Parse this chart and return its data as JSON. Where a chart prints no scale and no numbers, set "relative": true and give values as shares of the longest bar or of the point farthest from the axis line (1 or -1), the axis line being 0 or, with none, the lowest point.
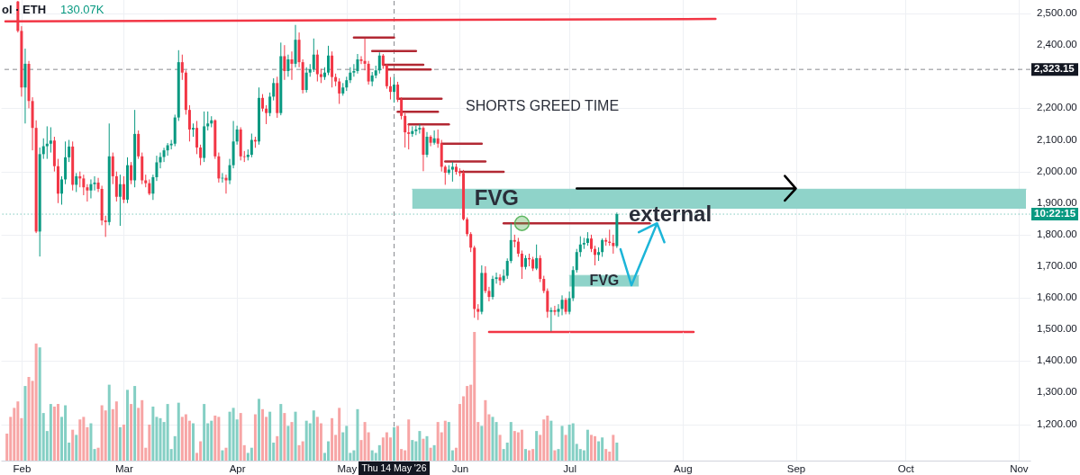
{
  "chart_data": [
    {
      "type": "candlestick",
      "x": [
        "2026-01-31",
        "2026-02-01",
        "2026-02-02",
        "2026-02-03",
        "2026-02-04",
        "2026-02-05",
        "2026-02-06",
        "2026-02-07",
        "2026-02-08",
        "2026-02-09",
        "2026-02-10",
        "2026-02-11",
        "2026-02-12",
        "2026-02-13",
        "2026-02-14",
        "2026-02-15",
        "2026-02-16",
        "2026-02-17",
        "2026-02-18",
        "2026-02-19",
        "2026-02-20",
        "2026-02-21",
        "2026-02-22",
        "2026-02-23",
        "2026-02-24",
        "2026-02-25",
        "2026-02-26",
        "2026-02-27",
        "2026-02-28",
        "2026-03-01",
        "2026-03-02",
        "2026-03-03",
        "2026-03-04",
        "2026-03-05",
        "2026-03-06",
        "2026-03-07",
        "2026-03-08",
        "2026-03-09",
        "2026-03-10",
        "2026-03-11",
        "2026-03-12",
        "2026-03-13",
        "2026-03-14",
        "2026-03-15",
        "2026-03-16",
        "2026-03-17",
        "2026-03-18",
        "2026-03-19",
        "2026-03-20",
        "2026-03-21",
        "2026-03-22",
        "2026-03-23",
        "2026-03-24",
        "2026-03-25",
        "2026-03-26",
        "2026-03-27",
        "2026-03-28",
        "2026-03-29",
        "2026-03-30",
        "2026-03-31",
        "2026-04-01",
        "2026-04-02",
        "2026-04-03",
        "2026-04-04",
        "2026-04-05",
        "2026-04-06",
        "2026-04-07",
        "2026-04-08",
        "2026-04-09",
        "2026-04-10",
        "2026-04-11",
        "2026-04-12",
        "2026-04-13",
        "2026-04-14",
        "2026-04-15",
        "2026-04-16",
        "2026-04-17",
        "2026-04-18",
        "2026-04-19",
        "2026-04-20",
        "2026-04-21",
        "2026-04-22",
        "2026-04-23",
        "2026-04-24",
        "2026-04-25",
        "2026-04-26",
        "2026-04-27",
        "2026-04-28",
        "2026-04-29",
        "2026-04-30",
        "2026-05-01",
        "2026-05-02",
        "2026-05-03",
        "2026-05-04",
        "2026-05-05",
        "2026-05-06",
        "2026-05-07",
        "2026-05-08",
        "2026-05-09",
        "2026-05-10",
        "2026-05-11",
        "2026-05-12",
        "2026-05-13",
        "2026-05-14",
        "2026-05-15",
        "2026-05-16",
        "2026-05-17",
        "2026-05-18",
        "2026-05-19",
        "2026-05-20",
        "2026-05-21",
        "2026-05-22",
        "2026-05-23",
        "2026-05-24",
        "2026-05-25",
        "2026-05-26",
        "2026-05-27",
        "2026-05-28",
        "2026-05-29",
        "2026-05-30",
        "2026-05-31",
        "2026-06-01",
        "2026-06-02",
        "2026-06-03",
        "2026-06-04",
        "2026-06-05",
        "2026-06-06",
        "2026-06-07",
        "2026-06-08",
        "2026-06-09",
        "2026-06-10",
        "2026-06-11",
        "2026-06-12",
        "2026-06-13",
        "2026-06-14",
        "2026-06-15",
        "2026-06-16",
        "2026-06-17",
        "2026-06-18",
        "2026-06-19",
        "2026-06-20",
        "2026-06-21",
        "2026-06-22",
        "2026-06-23",
        "2026-06-24",
        "2026-06-25",
        "2026-06-26",
        "2026-06-27",
        "2026-06-28",
        "2026-06-29",
        "2026-06-30",
        "2026-07-01",
        "2026-07-02",
        "2026-07-03",
        "2026-07-04",
        "2026-07-05",
        "2026-07-06",
        "2026-07-07",
        "2026-07-08",
        "2026-07-09",
        "2026-07-10",
        "2026-07-11",
        "2026-07-12",
        "2026-07-13",
        "2026-07-14"
      ],
      "ohlc": [
        [
          2538,
          2540,
          2440,
          2445
        ],
        [
          2445,
          2460,
          2237,
          2266
        ],
        [
          2266,
          2389,
          2152,
          2341
        ],
        [
          2341,
          2350,
          2200,
          2223
        ],
        [
          2223,
          2235,
          2067,
          2138
        ],
        [
          2138,
          2162,
          1805,
          1810
        ],
        [
          1810,
          2076,
          1731,
          2055
        ],
        [
          2055,
          2105,
          2040,
          2080
        ],
        [
          2080,
          2143,
          2040,
          2088
        ],
        [
          2088,
          2140,
          2060,
          2098
        ],
        [
          2098,
          2110,
          2000,
          2017
        ],
        [
          2017,
          2040,
          1900,
          1930
        ],
        [
          1930,
          1985,
          1895,
          1975
        ],
        [
          1975,
          2095,
          1960,
          2045
        ],
        [
          2045,
          2100,
          2030,
          2079
        ],
        [
          2079,
          2095,
          1940,
          1958
        ],
        [
          1958,
          1995,
          1935,
          1985
        ],
        [
          1985,
          2000,
          1950,
          1978
        ],
        [
          1978,
          1990,
          1925,
          1950
        ],
        [
          1950,
          1960,
          1905,
          1940
        ],
        [
          1940,
          1975,
          1915,
          1960
        ],
        [
          1960,
          1985,
          1940,
          1965
        ],
        [
          1965,
          1980,
          1935,
          1945
        ],
        [
          1945,
          1955,
          1830,
          1845
        ],
        [
          1845,
          1860,
          1793,
          1840
        ],
        [
          1840,
          2152,
          1830,
          2048
        ],
        [
          2048,
          2060,
          1960,
          1985
        ],
        [
          1985,
          2000,
          1905,
          1920
        ],
        [
          1920,
          1990,
          1828,
          1960
        ],
        [
          1960,
          1985,
          1900,
          1911
        ],
        [
          1911,
          2045,
          1900,
          2020
        ],
        [
          2020,
          2030,
          1960,
          1972
        ],
        [
          1972,
          2195,
          1950,
          2119
        ],
        [
          2119,
          2130,
          2040,
          2048
        ],
        [
          2048,
          2060,
          1960,
          1972
        ],
        [
          1972,
          1990,
          1950,
          1963
        ],
        [
          1963,
          1975,
          1925,
          1930
        ],
        [
          1930,
          1990,
          1910,
          1982
        ],
        [
          1982,
          2050,
          1970,
          2029
        ],
        [
          2029,
          2060,
          2010,
          2046
        ],
        [
          2046,
          2075,
          2030,
          2067
        ],
        [
          2067,
          2090,
          2050,
          2083
        ],
        [
          2083,
          2100,
          2070,
          2088
        ],
        [
          2088,
          2180,
          2080,
          2171
        ],
        [
          2171,
          2384,
          2160,
          2346
        ],
        [
          2346,
          2370,
          2290,
          2313
        ],
        [
          2313,
          2320,
          2180,
          2195
        ],
        [
          2195,
          2210,
          2095,
          2133
        ],
        [
          2133,
          2152,
          2110,
          2138
        ],
        [
          2138,
          2160,
          2055,
          2076
        ],
        [
          2076,
          2085,
          2020,
          2043
        ],
        [
          2043,
          2190,
          2030,
          2143
        ],
        [
          2143,
          2190,
          2130,
          2152
        ],
        [
          2152,
          2175,
          2140,
          2162
        ],
        [
          2162,
          2165,
          2040,
          2048
        ],
        [
          2048,
          2060,
          1965,
          1978
        ],
        [
          1978,
          1995,
          1965,
          1980
        ],
        [
          1980,
          1990,
          1930,
          1972
        ],
        [
          1972,
          2040,
          1960,
          2020
        ],
        [
          2020,
          2160,
          2010,
          2095
        ],
        [
          2095,
          2145,
          2085,
          2133
        ],
        [
          2133,
          2140,
          2035,
          2048
        ],
        [
          2048,
          2065,
          2030,
          2046
        ],
        [
          2046,
          2070,
          2035,
          2053
        ],
        [
          2053,
          2120,
          2045,
          2100
        ],
        [
          2100,
          2110,
          2075,
          2095
        ],
        [
          2095,
          2266,
          2085,
          2233
        ],
        [
          2233,
          2245,
          2190,
          2199
        ],
        [
          2199,
          2210,
          2150,
          2185
        ],
        [
          2185,
          2250,
          2175,
          2237
        ],
        [
          2237,
          2295,
          2225,
          2280
        ],
        [
          2280,
          2300,
          2170,
          2185
        ],
        [
          2185,
          2408,
          2178,
          2365
        ],
        [
          2365,
          2400,
          2290,
          2318
        ],
        [
          2318,
          2370,
          2300,
          2355
        ],
        [
          2355,
          2380,
          2290,
          2341
        ],
        [
          2341,
          2464,
          2330,
          2417
        ],
        [
          2417,
          2440,
          2330,
          2346
        ],
        [
          2346,
          2355,
          2247,
          2258
        ],
        [
          2258,
          2330,
          2250,
          2313
        ],
        [
          2313,
          2340,
          2300,
          2324
        ],
        [
          2324,
          2421,
          2315,
          2370
        ],
        [
          2370,
          2385,
          2285,
          2308
        ],
        [
          2308,
          2325,
          2280,
          2299
        ],
        [
          2299,
          2330,
          2290,
          2313
        ],
        [
          2313,
          2398,
          2305,
          2367
        ],
        [
          2367,
          2380,
          2266,
          2299
        ],
        [
          2299,
          2310,
          2270,
          2285
        ],
        [
          2285,
          2295,
          2214,
          2247
        ],
        [
          2247,
          2280,
          2240,
          2266
        ],
        [
          2266,
          2300,
          2255,
          2289
        ],
        [
          2289,
          2330,
          2280,
          2313
        ],
        [
          2313,
          2340,
          2300,
          2318
        ],
        [
          2318,
          2372,
          2310,
          2355
        ],
        [
          2355,
          2365,
          2340,
          2350
        ],
        [
          2350,
          2421,
          2320,
          2341
        ],
        [
          2341,
          2350,
          2275,
          2285
        ],
        [
          2285,
          2315,
          2270,
          2304
        ],
        [
          2304,
          2335,
          2295,
          2320
        ],
        [
          2320,
          2377,
          2310,
          2367
        ],
        [
          2367,
          2372,
          2325,
          2337
        ],
        [
          2337,
          2340,
          2262,
          2270
        ],
        [
          2270,
          2299,
          2228,
          2252
        ],
        [
          2252,
          2299,
          2218,
          2275
        ],
        [
          2275,
          2284,
          2220,
          2228
        ],
        [
          2228,
          2235,
          2165,
          2176
        ],
        [
          2176,
          2185,
          2076,
          2124
        ],
        [
          2124,
          2150,
          2070,
          2119
        ],
        [
          2119,
          2143,
          2110,
          2128
        ],
        [
          2128,
          2145,
          2115,
          2133
        ],
        [
          2133,
          2150,
          2120,
          2138
        ],
        [
          2138,
          2143,
          2001,
          2053
        ],
        [
          2053,
          2125,
          2045,
          2110
        ],
        [
          2110,
          2115,
          2080,
          2091
        ],
        [
          2091,
          2130,
          2085,
          2105
        ],
        [
          2105,
          2133,
          2075,
          2088
        ],
        [
          2088,
          2100,
          2000,
          2015
        ],
        [
          2015,
          2020,
          1958,
          1996
        ],
        [
          1996,
          2020,
          1990,
          2006
        ],
        [
          2006,
          2030,
          1968,
          2015
        ],
        [
          2015,
          2025,
          1990,
          1999
        ],
        [
          1999,
          2010,
          1985,
          1995
        ],
        [
          1995,
          2005,
          1845,
          1849
        ],
        [
          1849,
          1855,
          1795,
          1802
        ],
        [
          1802,
          1808,
          1745,
          1759
        ],
        [
          1759,
          1765,
          1537,
          1565
        ],
        [
          1565,
          1580,
          1530,
          1556
        ],
        [
          1556,
          1703,
          1548,
          1679
        ],
        [
          1679,
          1700,
          1615,
          1622
        ],
        [
          1622,
          1635,
          1589,
          1603
        ],
        [
          1603,
          1670,
          1595,
          1660
        ],
        [
          1660,
          1680,
          1645,
          1665
        ],
        [
          1665,
          1675,
          1640,
          1655
        ],
        [
          1655,
          1690,
          1648,
          1670
        ],
        [
          1670,
          1725,
          1660,
          1717
        ],
        [
          1717,
          1836,
          1710,
          1783
        ],
        [
          1783,
          1800,
          1760,
          1778
        ],
        [
          1778,
          1790,
          1730,
          1740
        ],
        [
          1740,
          1750,
          1660,
          1698
        ],
        [
          1698,
          1735,
          1690,
          1726
        ],
        [
          1726,
          1740,
          1700,
          1722
        ],
        [
          1722,
          1730,
          1685,
          1693
        ],
        [
          1693,
          1769,
          1688,
          1726
        ],
        [
          1726,
          1735,
          1650,
          1660
        ],
        [
          1660,
          1670,
          1615,
          1622
        ],
        [
          1622,
          1630,
          1537,
          1556
        ],
        [
          1556,
          1570,
          1494,
          1561
        ],
        [
          1561,
          1575,
          1545,
          1556
        ],
        [
          1556,
          1580,
          1540,
          1565
        ],
        [
          1565,
          1608,
          1545,
          1594
        ],
        [
          1594,
          1600,
          1548,
          1556
        ],
        [
          1556,
          1620,
          1548,
          1599
        ],
        [
          1599,
          1700,
          1590,
          1688
        ],
        [
          1688,
          1755,
          1680,
          1745
        ],
        [
          1745,
          1795,
          1730,
          1769
        ],
        [
          1769,
          1790,
          1755,
          1774
        ],
        [
          1774,
          1808,
          1765,
          1788
        ],
        [
          1788,
          1800,
          1745,
          1755
        ],
        [
          1755,
          1765,
          1703,
          1736
        ],
        [
          1736,
          1760,
          1717,
          1745
        ],
        [
          1745,
          1788,
          1730,
          1783
        ],
        [
          1783,
          1790,
          1765,
          1778
        ],
        [
          1778,
          1816,
          1765,
          1774
        ],
        [
          1774,
          1800,
          1740,
          1764
        ],
        [
          1764,
          1870,
          1758,
          1865
        ]
      ],
      "colors": [
        "#f23645",
        "#f23645",
        "#089981",
        "#f23645",
        "#f23645",
        "#f23645",
        "#089981",
        "#089981",
        "#089981",
        "#089981",
        "#f23645",
        "#f23645",
        "#089981",
        "#089981",
        "#089981",
        "#f23645",
        "#089981",
        "#f23645",
        "#f23645",
        "#f23645",
        "#089981",
        "#089981",
        "#f23645",
        "#f23645",
        "#f23645",
        "#089981",
        "#f23645",
        "#f23645",
        "#089981",
        "#f23645",
        "#089981",
        "#f23645",
        "#089981",
        "#f23645",
        "#f23645",
        "#f23645",
        "#f23645",
        "#089981",
        "#089981",
        "#089981",
        "#089981",
        "#089981",
        "#089981",
        "#089981",
        "#089981",
        "#f23645",
        "#f23645",
        "#f23645",
        "#089981",
        "#f23645",
        "#f23645",
        "#089981",
        "#089981",
        "#089981",
        "#f23645",
        "#f23645",
        "#089981",
        "#f23645",
        "#089981",
        "#089981",
        "#089981",
        "#f23645",
        "#f23645",
        "#089981",
        "#089981",
        "#f23645",
        "#089981",
        "#f23645",
        "#f23645",
        "#089981",
        "#089981",
        "#f23645",
        "#089981",
        "#f23645",
        "#089981",
        "#f23645",
        "#089981",
        "#f23645",
        "#f23645",
        "#089981",
        "#089981",
        "#089981",
        "#f23645",
        "#f23645",
        "#089981",
        "#089981",
        "#f23645",
        "#f23645",
        "#f23645",
        "#089981",
        "#089981",
        "#089981",
        "#089981",
        "#089981",
        "#f23645",
        "#f23645",
        "#f23645",
        "#089981",
        "#089981",
        "#089981",
        "#f23645",
        "#f23645",
        "#f23645",
        "#089981",
        "#f23645",
        "#f23645",
        "#f23645",
        "#f23645",
        "#089981",
        "#089981",
        "#089981",
        "#f23645",
        "#089981",
        "#f23645",
        "#089981",
        "#f23645",
        "#f23645",
        "#f23645",
        "#089981",
        "#089981",
        "#f23645",
        "#f23645",
        "#f23645",
        "#f23645",
        "#f23645",
        "#f23645",
        "#f23645",
        "#089981",
        "#f23645",
        "#f23645",
        "#089981",
        "#089981",
        "#f23645",
        "#089981",
        "#089981",
        "#089981",
        "#f23645",
        "#f23645",
        "#f23645",
        "#089981",
        "#f23645",
        "#f23645",
        "#089981",
        "#f23645",
        "#f23645",
        "#f23645",
        "#089981",
        "#f23645",
        "#089981",
        "#089981",
        "#f23645",
        "#089981",
        "#089981",
        "#089981",
        "#089981",
        "#089981",
        "#089981",
        "#f23645",
        "#f23645",
        "#089981",
        "#089981",
        "#f23645",
        "#f23645",
        "#f23645",
        "#089981"
      ],
      "series": [
        {
          "type": "line",
          "name": "FVG",
          "color": "#8fd3c9",
          "x": [
            "2026-05-19",
            "2026-11-03"
          ],
          "values": [
            1944,
            1944
          ],
          "lower": [
            1882,
            1882
          ],
          "upper": [
            1944,
            1944
          ]
        },
        {
          "type": "line",
          "name": "FVG",
          "color": "#8fd3c9",
          "x": [
            "2026-07-01",
            "2026-07-20"
          ],
          "values": [
            1671,
            1671
          ],
          "lower": [
            1636,
            1636
          ],
          "upper": [
            1671,
            1671
          ]
        },
        {
          "type": "line",
          "color": "#f23645",
          "x": [
            "2026-01-27T14:00",
            "2026-08-10"
          ],
          "values": [
            2475,
            2483
          ]
        },
        {
          "type": "line",
          "color": "#b22833",
          "x": [
            "2026-05-03",
            "2026-05-14"
          ],
          "values": [
            2424,
            2424
          ]
        },
        {
          "type": "line",
          "color": "#b22833",
          "x": [
            "2026-05-08",
            "2026-05-20"
          ],
          "values": [
            2381,
            2381
          ]
        },
        {
          "type": "line",
          "color": "#b22833",
          "x": [
            "2026-05-11",
            "2026-05-22"
          ],
          "values": [
            2338,
            2338
          ]
        },
        {
          "type": "line",
          "color": "#b22833",
          "x": [
            "2026-05-12",
            "2026-05-24"
          ],
          "values": [
            2323,
            2323
          ]
        },
        {
          "type": "line",
          "color": "#b22833",
          "x": [
            "2026-05-15",
            "2026-05-27"
          ],
          "values": [
            2230,
            2230
          ]
        },
        {
          "type": "line",
          "color": "#b22833",
          "x": [
            "2026-05-15",
            "2026-05-26"
          ],
          "values": [
            2189,
            2189
          ]
        },
        {
          "type": "line",
          "color": "#b22833",
          "x": [
            "2026-05-18",
            "2026-05-29"
          ],
          "values": [
            2149,
            2149
          ]
        },
        {
          "type": "line",
          "color": "#b22833",
          "x": [
            "2026-05-27",
            "2026-06-07"
          ],
          "values": [
            2088,
            2088
          ]
        },
        {
          "type": "line",
          "color": "#b22833",
          "x": [
            "2026-05-28",
            "2026-06-08"
          ],
          "values": [
            2032,
            2032
          ]
        },
        {
          "type": "line",
          "color": "#b22833",
          "x": [
            "2026-06-01",
            "2026-06-13"
          ],
          "values": [
            1999,
            1999
          ]
        },
        {
          "type": "line",
          "color": "#b22833",
          "x": [
            "2026-06-13",
            "2026-07-23"
          ],
          "values": [
            1836,
            1836
          ]
        },
        {
          "type": "line",
          "color": "#f23645",
          "x": [
            "2026-06-09",
            "2026-08-04"
          ],
          "values": [
            1492,
            1492
          ]
        },
        {
          "type": "line",
          "color": "#000000",
          "x": [
            "2026-07-03",
            "2026-09-01",
            "2026-08-29",
            "2026-09-01",
            "2026-08-29"
          ],
          "values": [
            1946,
            1946,
            1986,
            1946,
            1908
          ]
        },
        {
          "type": "line",
          "color": "#1cb5d8",
          "x": [
            "2026-07-15",
            "2026-07-18",
            "2026-07-25",
            "2026-07-20",
            "2026-07-25",
            "2026-07-27"
          ],
          "values": [
            1754,
            1640,
            1836,
            1808,
            1836,
            1776
          ]
        },
        {
          "type": "scatter",
          "color": "#4caf50",
          "marker": "circle",
          "x": [
            "2026-06-18"
          ],
          "values": [
            1836
          ]
        }
      ],
      "ref_lines": [
        {
          "axis": "x",
          "value": "2026-05-14",
          "label": "Thu 14 May '26",
          "color": "#131722",
          "line_style": "dashed"
        },
        {
          "axis": "y",
          "value": 2323.15,
          "label": "2,323.15",
          "color": "#131722",
          "line_style": "dashed"
        },
        {
          "axis": "y",
          "value": 1865,
          "color": "#089981",
          "line_style": "dotted"
        }
      ],
      "annotations": [
        "SHORTS GREED TIME",
        "external",
        "ol · ETH",
        "130.07K",
        "10:22:15"
      ],
      "xlim": [
        "2026-01-27T14:00",
        "2026-11-03"
      ],
      "xticks": [
        {
          "value": "2026-02-01",
          "label": null
        },
        {
          "value": "2026-03-01",
          "label": null
        },
        {
          "value": "2026-04-01",
          "label": null
        },
        {
          "value": "2026-05-01",
          "label": null
        },
        {
          "value": "2026-06-01",
          "label": null
        },
        {
          "value": "2026-07-01",
          "label": null
        },
        {
          "value": "2026-08-01",
          "label": null
        },
        {
          "value": "2026-09-01",
          "label": null
        },
        {
          "value": "2026-10-01",
          "label": null
        },
        {
          "value": "2026-11-01",
          "label": null
        }
      ],
      "ylim": [
        1085,
        2540
      ],
      "yticks": [
        {
          "value": 1200,
          "label": "1,200.00"
        },
        {
          "value": 1300,
          "label": "1,300.00"
        },
        {
          "value": 1400,
          "label": "1,400.00"
        },
        {
          "value": 1500,
          "label": "1,500.00"
        },
        {
          "value": 1600,
          "label": "1,600.00"
        },
        {
          "value": 1700,
          "label": "1,700.00"
        },
        {
          "value": 1800,
          "label": "1,800.00"
        },
        {
          "value": 1900,
          "label": "1,900.00"
        },
        {
          "value": 2000,
          "label": "2,000.00"
        },
        {
          "value": 2100,
          "label": "2,100.00"
        },
        {
          "value": 2200,
          "label": "2,200.00"
        },
        {
          "value": 2400,
          "label": "2,400.00"
        },
        {
          "value": 2500,
          "label": "2,500.00"
        }
      ],
      "grid": true,
      "tick_labels": "y"
    },
    {
      "type": "bar",
      "relative": true,
      "tick_labels": "x",
      "grid": "x",
      "x": [
        "2026-01-28",
        "2026-01-29",
        "2026-01-30",
        "2026-01-31",
        "2026-02-01",
        "2026-02-02",
        "2026-02-03",
        "2026-02-04",
        "2026-02-05",
        "2026-02-06",
        "2026-02-07",
        "2026-02-08",
        "2026-02-09",
        "2026-02-10",
        "2026-02-11",
        "2026-02-12",
        "2026-02-13",
        "2026-02-14",
        "2026-02-15",
        "2026-02-16",
        "2026-02-17",
        "2026-02-18",
        "2026-02-19",
        "2026-02-20",
        "2026-02-21",
        "2026-02-22",
        "2026-02-23",
        "2026-02-24",
        "2026-02-25",
        "2026-02-26",
        "2026-02-27",
        "2026-02-28",
        "2026-03-01",
        "2026-03-02",
        "2026-03-03",
        "2026-03-04",
        "2026-03-05",
        "2026-03-06",
        "2026-03-07",
        "2026-03-08",
        "2026-03-09",
        "2026-03-10",
        "2026-03-11",
        "2026-03-12",
        "2026-03-13",
        "2026-03-14",
        "2026-03-15",
        "2026-03-16",
        "2026-03-17",
        "2026-03-18",
        "2026-03-19",
        "2026-03-20",
        "2026-03-21",
        "2026-03-22",
        "2026-03-23",
        "2026-03-24",
        "2026-03-25",
        "2026-03-26",
        "2026-03-27",
        "2026-03-28",
        "2026-03-29",
        "2026-03-30",
        "2026-03-31",
        "2026-04-01",
        "2026-04-02",
        "2026-04-03",
        "2026-04-04",
        "2026-04-05",
        "2026-04-06",
        "2026-04-07",
        "2026-04-08",
        "2026-04-09",
        "2026-04-10",
        "2026-04-11",
        "2026-04-12",
        "2026-04-13",
        "2026-04-14",
        "2026-04-15",
        "2026-04-16",
        "2026-04-17",
        "2026-04-18",
        "2026-04-19",
        "2026-04-20",
        "2026-04-21",
        "2026-04-22",
        "2026-04-23",
        "2026-04-24",
        "2026-04-25",
        "2026-04-26",
        "2026-04-27",
        "2026-04-28",
        "2026-04-29",
        "2026-04-30",
        "2026-05-01",
        "2026-05-02",
        "2026-05-03",
        "2026-05-04",
        "2026-05-05",
        "2026-05-06",
        "2026-05-07",
        "2026-05-08",
        "2026-05-09",
        "2026-05-10",
        "2026-05-11",
        "2026-05-12",
        "2026-05-13",
        "2026-05-14",
        "2026-05-15",
        "2026-05-16",
        "2026-05-17",
        "2026-05-18",
        "2026-05-19",
        "2026-05-20",
        "2026-05-21",
        "2026-05-22",
        "2026-05-23",
        "2026-05-24",
        "2026-05-25",
        "2026-05-26",
        "2026-05-27",
        "2026-05-28",
        "2026-05-29",
        "2026-05-30",
        "2026-05-31",
        "2026-06-01",
        "2026-06-02",
        "2026-06-03",
        "2026-06-04",
        "2026-06-05",
        "2026-06-06",
        "2026-06-07",
        "2026-06-08",
        "2026-06-09",
        "2026-06-10",
        "2026-06-11",
        "2026-06-12",
        "2026-06-13",
        "2026-06-14",
        "2026-06-15",
        "2026-06-16",
        "2026-06-17",
        "2026-06-18",
        "2026-06-19",
        "2026-06-20",
        "2026-06-21",
        "2026-06-22",
        "2026-06-23",
        "2026-06-24",
        "2026-06-25",
        "2026-06-26",
        "2026-06-27",
        "2026-06-28",
        "2026-06-29",
        "2026-06-30",
        "2026-07-01",
        "2026-07-02",
        "2026-07-03",
        "2026-07-04",
        "2026-07-05",
        "2026-07-06",
        "2026-07-07",
        "2026-07-08",
        "2026-07-09",
        "2026-07-10",
        "2026-07-11",
        "2026-07-12",
        "2026-07-13",
        "2026-07-14"
      ],
      "values": [
        0.21,
        0.34,
        0.41,
        0.46,
        0.33,
        0.58,
        0.65,
        0.62,
        0.91,
        0.88,
        0.37,
        0.23,
        0.44,
        0.42,
        0.44,
        0.34,
        0.43,
        0.14,
        0.24,
        0.2,
        0.32,
        0.34,
        0.26,
        0.29,
        0.09,
        0.1,
        0.43,
        0.39,
        0.59,
        0.4,
        0.46,
        0.26,
        0.28,
        0.55,
        0.44,
        0.58,
        0.41,
        0.47,
        0.1,
        0.28,
        0.42,
        0.34,
        0.33,
        0.3,
        0.44,
        0.09,
        0.19,
        0.45,
        0.34,
        0.36,
        0.31,
        0.29,
        0.06,
        0.15,
        0.44,
        0.29,
        0.31,
        0.35,
        0.34,
        0.08,
        0.1,
        0.38,
        0.41,
        0.32,
        0.37,
        0.12,
        0.06,
        0.1,
        0.36,
        0.48,
        0.4,
        0.34,
        0.38,
        0.14,
        0.19,
        0.44,
        0.37,
        0.27,
        0.3,
        0.38,
        0.12,
        0.15,
        0.31,
        0.29,
        0.39,
        0.34,
        0.29,
        0.06,
        0.15,
        0.33,
        0.2,
        0.41,
        0.22,
        0.27,
        0.06,
        0.08,
        0.4,
        0.16,
        0.3,
        0.22,
        0.08,
        0.06,
        0.12,
        0.18,
        0.22,
        0.18,
        0.26,
        0.27,
        0.09,
        0.08,
        0.32,
        0.16,
        0.15,
        0.23,
        0.17,
        0.19,
        0.1,
        0.12,
        0.3,
        0.22,
        0.31,
        0.3,
        0.08,
        0.1,
        0.44,
        0.5,
        0.58,
        0.59,
        1,
        0.3,
        0.27,
        0.47,
        0.36,
        0.34,
        0.3,
        0.2,
        0.09,
        0.14,
        0.3,
        0.23,
        0.22,
        0.24,
        0.09,
        0.08,
        0.09,
        0.23,
        0.2,
        0.32,
        0.35,
        0.31,
        0.08,
        0.09,
        0.27,
        0.2,
        0.28,
        0.29,
        0.13,
        0.09,
        0.08,
        0.24,
        0.2,
        0.19,
        0.15,
        0.18,
        0.09,
        0.07,
        0.2,
        0.14
      ],
      "colors": [
        "#f7a5a5",
        "#f7a5a5",
        "#f7a5a5",
        "#f7a5a5",
        "#f7a5a5",
        "#84cfc4",
        "#f7a5a5",
        "#f7a5a5",
        "#f7a5a5",
        "#84cfc4",
        "#84cfc4",
        "#84cfc4",
        "#84cfc4",
        "#f7a5a5",
        "#f7a5a5",
        "#84cfc4",
        "#84cfc4",
        "#84cfc4",
        "#f7a5a5",
        "#84cfc4",
        "#f7a5a5",
        "#f7a5a5",
        "#f7a5a5",
        "#84cfc4",
        "#84cfc4",
        "#f7a5a5",
        "#f7a5a5",
        "#f7a5a5",
        "#84cfc4",
        "#f7a5a5",
        "#f7a5a5",
        "#84cfc4",
        "#f7a5a5",
        "#84cfc4",
        "#f7a5a5",
        "#84cfc4",
        "#f7a5a5",
        "#f7a5a5",
        "#f7a5a5",
        "#f7a5a5",
        "#84cfc4",
        "#84cfc4",
        "#84cfc4",
        "#84cfc4",
        "#84cfc4",
        "#84cfc4",
        "#84cfc4",
        "#84cfc4",
        "#f7a5a5",
        "#f7a5a5",
        "#f7a5a5",
        "#84cfc4",
        "#f7a5a5",
        "#f7a5a5",
        "#84cfc4",
        "#84cfc4",
        "#84cfc4",
        "#f7a5a5",
        "#f7a5a5",
        "#84cfc4",
        "#f7a5a5",
        "#84cfc4",
        "#84cfc4",
        "#84cfc4",
        "#f7a5a5",
        "#f7a5a5",
        "#84cfc4",
        "#84cfc4",
        "#f7a5a5",
        "#84cfc4",
        "#f7a5a5",
        "#f7a5a5",
        "#84cfc4",
        "#84cfc4",
        "#f7a5a5",
        "#84cfc4",
        "#f7a5a5",
        "#84cfc4",
        "#f7a5a5",
        "#84cfc4",
        "#f7a5a5",
        "#f7a5a5",
        "#84cfc4",
        "#84cfc4",
        "#84cfc4",
        "#f7a5a5",
        "#f7a5a5",
        "#84cfc4",
        "#84cfc4",
        "#f7a5a5",
        "#f7a5a5",
        "#f7a5a5",
        "#84cfc4",
        "#84cfc4",
        "#84cfc4",
        "#84cfc4",
        "#84cfc4",
        "#f7a5a5",
        "#f7a5a5",
        "#f7a5a5",
        "#84cfc4",
        "#84cfc4",
        "#84cfc4",
        "#f7a5a5",
        "#f7a5a5",
        "#f7a5a5",
        "#84cfc4",
        "#f7a5a5",
        "#f7a5a5",
        "#f7a5a5",
        "#f7a5a5",
        "#84cfc4",
        "#84cfc4",
        "#84cfc4",
        "#f7a5a5",
        "#84cfc4",
        "#f7a5a5",
        "#84cfc4",
        "#f7a5a5",
        "#f7a5a5",
        "#f7a5a5",
        "#84cfc4",
        "#84cfc4",
        "#f7a5a5",
        "#f7a5a5",
        "#f7a5a5",
        "#f7a5a5",
        "#f7a5a5",
        "#f7a5a5",
        "#f7a5a5",
        "#84cfc4",
        "#f7a5a5",
        "#f7a5a5",
        "#84cfc4",
        "#84cfc4",
        "#f7a5a5",
        "#84cfc4",
        "#84cfc4",
        "#84cfc4",
        "#f7a5a5",
        "#f7a5a5",
        "#f7a5a5",
        "#84cfc4",
        "#f7a5a5",
        "#f7a5a5",
        "#84cfc4",
        "#f7a5a5",
        "#f7a5a5",
        "#f7a5a5",
        "#84cfc4",
        "#f7a5a5",
        "#84cfc4",
        "#84cfc4",
        "#f7a5a5",
        "#84cfc4",
        "#84cfc4",
        "#84cfc4",
        "#84cfc4",
        "#84cfc4",
        "#84cfc4",
        "#f7a5a5",
        "#f7a5a5",
        "#84cfc4",
        "#84cfc4",
        "#f7a5a5",
        "#f7a5a5",
        "#f7a5a5",
        "#84cfc4"
      ],
      "xlim": [
        "2026-01-27T14:00",
        "2026-11-03"
      ],
      "xticks": [
        {
          "value": "2026-02-01",
          "label": "Feb"
        },
        {
          "value": "2026-03-01",
          "label": "Mar"
        },
        {
          "value": "2026-04-01",
          "label": "Apr"
        },
        {
          "value": "2026-05-01",
          "label": "May"
        },
        {
          "value": "2026-06-01",
          "label": "Jun"
        },
        {
          "value": "2026-07-01",
          "label": "Jul"
        },
        {
          "value": "2026-08-01",
          "label": "Aug"
        },
        {
          "value": "2026-09-01",
          "label": "Sep"
        },
        {
          "value": "2026-10-01",
          "label": "Oct"
        },
        {
          "value": "2026-11-01",
          "label": "Nov"
        }
      ]
    }
  ]
}
